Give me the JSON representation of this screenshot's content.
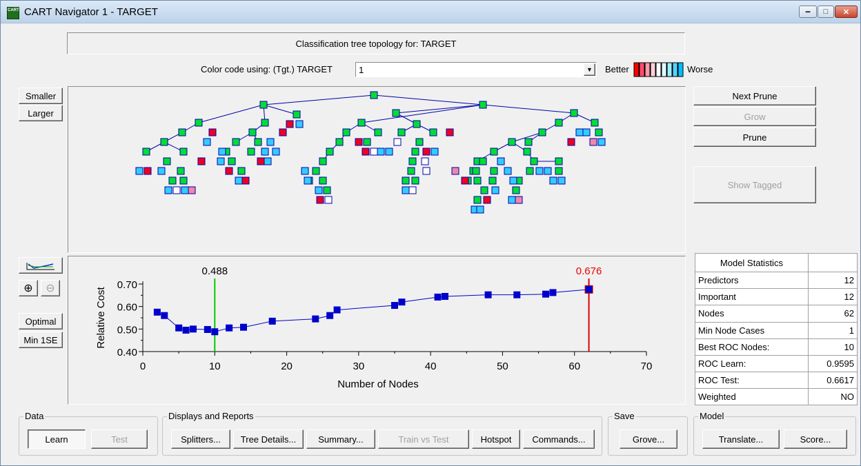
{
  "window": {
    "title": "CART Navigator 1 - TARGET",
    "icon_text": "CART"
  },
  "header": {
    "topology_title": "Classification tree topology for: TARGET",
    "color_code_label": "Color code using: (Tgt.) TARGET",
    "color_code_value": "1",
    "better_label": "Better",
    "worse_label": "Worse",
    "scale_colors": [
      "#ff0000",
      "#ff4d6d",
      "#ff9aa8",
      "#ffd1d8",
      "#ffffff",
      "#e0ffff",
      "#9ff0ff",
      "#4fd5ff",
      "#00bfff"
    ]
  },
  "left_buttons": {
    "smaller": "Smaller",
    "larger": "Larger",
    "chart_icon": "line-chart-icon",
    "zoom_in": "zoom-in-icon",
    "zoom_out": "zoom-out-icon",
    "optimal": "Optimal",
    "min_1se": "Min 1SE"
  },
  "right_buttons": {
    "next_prune": "Next Prune",
    "grow": "Grow",
    "prune": "Prune",
    "show_tagged": "Show Tagged"
  },
  "tree": {
    "node_colors": {
      "internal": "#00dd33",
      "red": "#ee0022",
      "cyan": "#33ccff",
      "pink": "#ee88aa",
      "white": "#ffffff"
    }
  },
  "chart_data": {
    "type": "line",
    "xlabel": "Number of Nodes",
    "ylabel": "Relative Cost",
    "xlim": [
      0,
      70
    ],
    "ylim": [
      0.4,
      0.7
    ],
    "xticks": [
      "0",
      "10",
      "20",
      "30",
      "40",
      "50",
      "60",
      "70"
    ],
    "yticks": [
      "0.40",
      "0.50",
      "0.60",
      "0.70"
    ],
    "series": [
      {
        "x": [
          2,
          3,
          5,
          6,
          7,
          9,
          10,
          12,
          14,
          18,
          24,
          26,
          27,
          35,
          36,
          41,
          42,
          48,
          52,
          56,
          57,
          62
        ],
        "y": [
          0.575,
          0.56,
          0.505,
          0.495,
          0.5,
          0.498,
          0.488,
          0.505,
          0.508,
          0.535,
          0.545,
          0.56,
          0.585,
          0.605,
          0.62,
          0.642,
          0.645,
          0.652,
          0.652,
          0.655,
          0.662,
          0.676
        ]
      }
    ],
    "color": "#0000cc",
    "markers": [
      {
        "x": 10,
        "label": "0.488",
        "color": "#00cc00",
        "label_color": "#000000"
      },
      {
        "x": 62,
        "label": "0.676",
        "color": "#dd0000",
        "label_color": "#ee0000"
      }
    ]
  },
  "model_statistics": {
    "title": "Model Statistics",
    "rows": [
      {
        "label": "Predictors",
        "value": "12"
      },
      {
        "label": "Important",
        "value": "12"
      },
      {
        "label": "Nodes",
        "value": "62"
      },
      {
        "label": "Min Node Cases",
        "value": "1"
      },
      {
        "label": "Best ROC Nodes:",
        "value": "10"
      },
      {
        "label": "ROC Learn:",
        "value": "0.9595"
      },
      {
        "label": "ROC Test:",
        "value": "0.6617"
      },
      {
        "label": "Weighted",
        "value": "NO"
      }
    ]
  },
  "bottom": {
    "data_group": "Data",
    "learn": "Learn",
    "test": "Test",
    "displays_group": "Displays and Reports",
    "splitters": "Splitters...",
    "tree_details": "Tree Details...",
    "summary": "Summary...",
    "train_vs_test": "Train vs Test",
    "hotspot": "Hotspot",
    "commands": "Commands...",
    "save_group": "Save",
    "grove": "Grove...",
    "model_group": "Model",
    "translate": "Translate...",
    "score": "Score..."
  }
}
